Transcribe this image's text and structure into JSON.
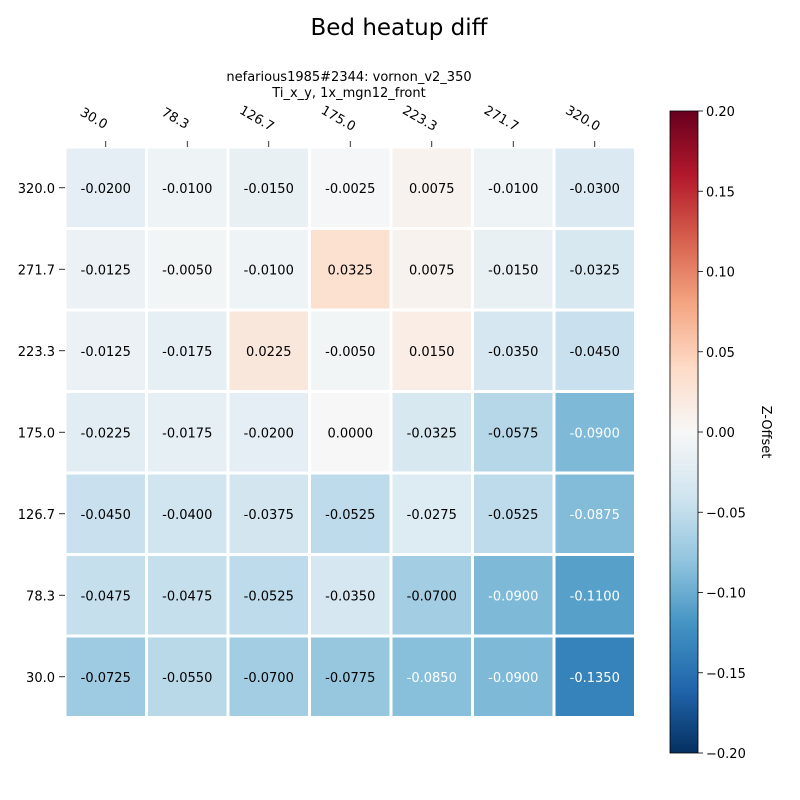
{
  "chart_data": {
    "type": "heatmap",
    "title": "Bed heatup diff",
    "subtitle_line1": "nefarious1985#2344: vornon_v2_350",
    "subtitle_line2": "Ti_x_y, 1x_mgn12_front",
    "x_ticks": [
      "30.0",
      "78.3",
      "126.7",
      "175.0",
      "223.3",
      "271.7",
      "320.0"
    ],
    "y_ticks": [
      "320.0",
      "271.7",
      "223.3",
      "175.0",
      "126.7",
      "78.3",
      "30.0"
    ],
    "values": [
      [
        -0.02,
        -0.01,
        -0.015,
        -0.0025,
        0.0075,
        -0.01,
        -0.03
      ],
      [
        -0.0125,
        -0.005,
        -0.01,
        0.0325,
        0.0075,
        -0.015,
        -0.0325
      ],
      [
        -0.0125,
        -0.0175,
        0.0225,
        -0.005,
        0.015,
        -0.035,
        -0.045
      ],
      [
        -0.0225,
        -0.0175,
        -0.02,
        0.0,
        -0.0325,
        -0.0575,
        -0.09
      ],
      [
        -0.045,
        -0.04,
        -0.0375,
        -0.0525,
        -0.0275,
        -0.0525,
        -0.0875
      ],
      [
        -0.0475,
        -0.0475,
        -0.0525,
        -0.035,
        -0.07,
        -0.09,
        -0.11
      ],
      [
        -0.0725,
        -0.055,
        -0.07,
        -0.0775,
        -0.085,
        -0.09,
        -0.135
      ]
    ],
    "labels": [
      [
        "-0.0200",
        "-0.0100",
        "-0.0150",
        "-0.0025",
        "0.0075",
        "-0.0100",
        "-0.0300"
      ],
      [
        "-0.0125",
        "-0.0050",
        "-0.0100",
        "0.0325",
        "0.0075",
        "-0.0150",
        "-0.0325"
      ],
      [
        "-0.0125",
        "-0.0175",
        "0.0225",
        "-0.0050",
        "0.0150",
        "-0.0350",
        "-0.0450"
      ],
      [
        "-0.0225",
        "-0.0175",
        "-0.0200",
        "0.0000",
        "-0.0325",
        "-0.0575",
        "-0.0900"
      ],
      [
        "-0.0450",
        "-0.0400",
        "-0.0375",
        "-0.0525",
        "-0.0275",
        "-0.0525",
        "-0.0875"
      ],
      [
        "-0.0475",
        "-0.0475",
        "-0.0525",
        "-0.0350",
        "-0.0700",
        "-0.0900",
        "-0.1100"
      ],
      [
        "-0.0725",
        "-0.0550",
        "-0.0700",
        "-0.0775",
        "-0.0850",
        "-0.0900",
        "-0.1350"
      ]
    ],
    "colorbar": {
      "label": "Z-Offset",
      "vmin": -0.2,
      "vmax": 0.2,
      "colormap": "RdBu_r",
      "ticks": [
        "0.20",
        "0.15",
        "0.10",
        "0.05",
        "0.00",
        "−0.05",
        "−0.10",
        "−0.15",
        "−0.20"
      ],
      "tick_values": [
        0.2,
        0.15,
        0.1,
        0.05,
        0.0,
        -0.05,
        -0.1,
        -0.15,
        -0.2
      ]
    },
    "grid": false,
    "legend": "colorbar-right"
  }
}
